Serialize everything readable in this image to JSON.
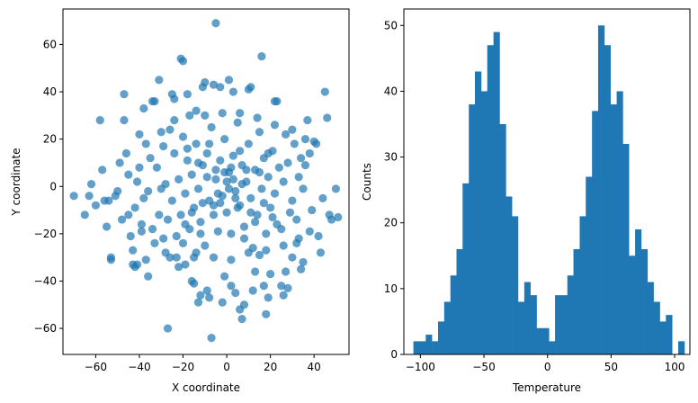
{
  "chart_data": [
    {
      "type": "scatter",
      "xlabel": "X coordinate",
      "ylabel": "Y coordinate",
      "xlim": [
        -75,
        56
      ],
      "ylim": [
        -71,
        75
      ],
      "xticks": [
        -60,
        -40,
        -20,
        0,
        20,
        40
      ],
      "yticks": [
        -60,
        -40,
        -20,
        0,
        20,
        40,
        60
      ],
      "color": "#1f77b4",
      "alpha": 0.7,
      "points": [
        [
          -70,
          -4
        ],
        [
          -65,
          -12
        ],
        [
          -63,
          -4
        ],
        [
          -58,
          28
        ],
        [
          -57,
          7
        ],
        [
          -56,
          -6
        ],
        [
          -55,
          -17
        ],
        [
          -54,
          -6
        ],
        [
          -53,
          -31
        ],
        [
          -53,
          -30
        ],
        [
          -51,
          -4
        ],
        [
          -49,
          10
        ],
        [
          -47,
          28
        ],
        [
          -47,
          39
        ],
        [
          -45,
          -12
        ],
        [
          -43,
          -33
        ],
        [
          -42,
          -34
        ],
        [
          -41,
          -33
        ],
        [
          -40,
          8
        ],
        [
          -39,
          -19
        ],
        [
          -38,
          33
        ],
        [
          -37,
          -31
        ],
        [
          -36,
          -38
        ],
        [
          -34,
          36
        ],
        [
          -33,
          36
        ],
        [
          -31,
          45
        ],
        [
          -30,
          23
        ],
        [
          -29,
          -22
        ],
        [
          -28,
          -28
        ],
        [
          -27,
          -60
        ],
        [
          -25,
          39
        ],
        [
          -24,
          37
        ],
        [
          -23,
          -30
        ],
        [
          -22,
          -34
        ],
        [
          -21,
          54
        ],
        [
          -20,
          53
        ],
        [
          -19,
          -33
        ],
        [
          -18,
          39
        ],
        [
          -16,
          -40
        ],
        [
          -15,
          -41
        ],
        [
          -14,
          32
        ],
        [
          -13,
          -49
        ],
        [
          -12,
          -46
        ],
        [
          -11,
          42
        ],
        [
          -10,
          44
        ],
        [
          -9,
          -44
        ],
        [
          -8,
          -47
        ],
        [
          -7,
          -64
        ],
        [
          -6,
          43
        ],
        [
          -5,
          69
        ],
        [
          -3,
          42
        ],
        [
          -2,
          -49
        ],
        [
          -1,
          -38
        ],
        [
          1,
          45
        ],
        [
          2,
          -42
        ],
        [
          3,
          40
        ],
        [
          4,
          -45
        ],
        [
          6,
          -52
        ],
        [
          7,
          -56
        ],
        [
          8,
          -50
        ],
        [
          10,
          41
        ],
        [
          11,
          42
        ],
        [
          12,
          -44
        ],
        [
          13,
          -36
        ],
        [
          15,
          -29
        ],
        [
          16,
          55
        ],
        [
          17,
          -42
        ],
        [
          18,
          -54
        ],
        [
          19,
          -47
        ],
        [
          20,
          -37
        ],
        [
          22,
          36
        ],
        [
          23,
          36
        ],
        [
          25,
          -42
        ],
        [
          26,
          -46
        ],
        [
          27,
          -36
        ],
        [
          28,
          -43
        ],
        [
          30,
          -30
        ],
        [
          32,
          -24
        ],
        [
          34,
          -35
        ],
        [
          35,
          -32
        ],
        [
          37,
          28
        ],
        [
          38,
          14
        ],
        [
          40,
          19
        ],
        [
          41,
          18
        ],
        [
          42,
          -21
        ],
        [
          43,
          -28
        ],
        [
          45,
          40
        ],
        [
          46,
          29
        ],
        [
          47,
          -12
        ],
        [
          48,
          -14
        ],
        [
          50,
          -1
        ],
        [
          51,
          -13
        ],
        [
          44,
          -5
        ],
        [
          38,
          -19
        ],
        [
          36,
          9
        ],
        [
          33,
          4
        ],
        [
          31,
          18
        ],
        [
          29,
          -11
        ],
        [
          27,
          22
        ],
        [
          25,
          -18
        ],
        [
          -62,
          1
        ],
        [
          -60,
          -8
        ],
        [
          -46,
          14
        ],
        [
          -44,
          -21
        ],
        [
          -42,
          -9
        ],
        [
          -41,
          2
        ],
        [
          -39,
          -16
        ],
        [
          -37,
          18
        ],
        [
          -36,
          -2
        ],
        [
          -35,
          12
        ],
        [
          -33,
          -24
        ],
        [
          -32,
          8
        ],
        [
          -31,
          -12
        ],
        [
          -29,
          17
        ],
        [
          -28,
          1
        ],
        [
          -27,
          -14
        ],
        [
          -26,
          24
        ],
        [
          -25,
          -6
        ],
        [
          -24,
          14
        ],
        [
          -23,
          -21
        ],
        [
          -22,
          3
        ],
        [
          -21,
          -12
        ],
        [
          -20,
          21
        ],
        [
          -19,
          -3
        ],
        [
          -18,
          11
        ],
        [
          -17,
          -18
        ],
        [
          -16,
          5
        ],
        [
          -15,
          -9
        ],
        [
          -14,
          18
        ],
        [
          -13,
          -1
        ],
        [
          -12,
          -15
        ],
        [
          -11,
          9
        ],
        [
          -10,
          -25
        ],
        [
          -9,
          14
        ],
        [
          -8,
          -6
        ],
        [
          -7,
          25
        ],
        [
          -6,
          -12
        ],
        [
          -5,
          3
        ],
        [
          -4,
          -19
        ],
        [
          -3,
          11
        ],
        [
          -2,
          -4
        ],
        [
          -1,
          20
        ],
        [
          0,
          -11
        ],
        [
          1,
          6
        ],
        [
          2,
          -20
        ],
        [
          3,
          13
        ],
        [
          4,
          -2
        ],
        [
          5,
          27
        ],
        [
          6,
          -8
        ],
        [
          7,
          9
        ],
        [
          8,
          -17
        ],
        [
          9,
          2
        ],
        [
          10,
          18
        ],
        [
          11,
          -5
        ],
        [
          12,
          -26
        ],
        [
          13,
          7
        ],
        [
          14,
          -12
        ],
        [
          15,
          23
        ],
        [
          16,
          -1
        ],
        [
          17,
          12
        ],
        [
          18,
          -20
        ],
        [
          19,
          4
        ],
        [
          20,
          -9
        ],
        [
          21,
          15
        ],
        [
          22,
          -3
        ],
        [
          23,
          -16
        ],
        [
          24,
          8
        ],
        [
          26,
          2
        ],
        [
          28,
          10
        ],
        [
          30,
          -6
        ],
        [
          32,
          -14
        ],
        [
          34,
          12
        ],
        [
          35,
          -1
        ],
        [
          -50,
          -2
        ],
        [
          -48,
          -14
        ],
        [
          -45,
          5
        ],
        [
          -43,
          -27
        ],
        [
          -40,
          22
        ],
        [
          -38,
          -5
        ],
        [
          -34,
          -18
        ],
        [
          -30,
          -1
        ],
        [
          -26,
          -30
        ],
        [
          -24,
          28
        ],
        [
          -20,
          -24
        ],
        [
          -17,
          30
        ],
        [
          -14,
          -28
        ],
        [
          -10,
          30
        ],
        [
          -6,
          -30
        ],
        [
          -2,
          31
        ],
        [
          2,
          -31
        ],
        [
          6,
          31
        ],
        [
          10,
          -28
        ],
        [
          14,
          29
        ],
        [
          18,
          -27
        ],
        [
          22,
          26
        ],
        [
          26,
          -25
        ],
        [
          30,
          24
        ],
        [
          33,
          -22
        ],
        [
          36,
          20
        ],
        [
          39,
          -10
        ],
        [
          -5,
          7
        ],
        [
          -3,
          -7
        ],
        [
          0,
          2
        ],
        [
          2,
          8
        ],
        [
          4,
          -5
        ],
        [
          6,
          15
        ],
        [
          -8,
          18
        ],
        [
          -12,
          -20
        ],
        [
          8,
          -22
        ],
        [
          -15,
          -30
        ],
        [
          1,
          -1
        ],
        [
          3,
          3
        ],
        [
          5,
          -9
        ],
        [
          -1,
          6
        ],
        [
          -4,
          -3
        ],
        [
          7,
          1
        ],
        [
          -6,
          -8
        ],
        [
          9,
          7
        ],
        [
          -9,
          4
        ],
        [
          11,
          -11
        ],
        [
          -11,
          -7
        ],
        [
          13,
          -15
        ],
        [
          -13,
          10
        ],
        [
          15,
          6
        ],
        [
          -16,
          -11
        ],
        [
          17,
          -7
        ],
        [
          -18,
          16
        ],
        [
          19,
          14
        ],
        [
          -19,
          -16
        ],
        [
          21,
          -13
        ]
      ]
    },
    {
      "type": "bar",
      "subtype": "histogram",
      "xlabel": "Temperature",
      "ylabel": "Counts",
      "xlim": [
        -113,
        112
      ],
      "ylim": [
        0,
        52.5
      ],
      "xticks": [
        -100,
        -50,
        0,
        50,
        100
      ],
      "yticks": [
        0,
        10,
        20,
        30,
        40,
        50
      ],
      "color": "#1f77b4",
      "bin_edges": [
        -105.5,
        -100.7,
        -95.8,
        -91,
        -86.1,
        -81.3,
        -76.4,
        -71.6,
        -66.8,
        -61.9,
        -57.1,
        -52.2,
        -47.4,
        -42.5,
        -37.7,
        -32.8,
        -28,
        -23.2,
        -18.3,
        -13.5,
        -8.6,
        -3.8,
        1.1,
        5.9,
        10.8,
        15.6,
        20.4,
        25.3,
        30.1,
        35,
        39.8,
        44.7,
        49.5,
        54.4,
        59.2,
        64,
        68.9,
        73.7,
        78.6,
        83.4,
        88.3,
        93.1,
        98,
        102.8,
        107.7
      ],
      "counts": [
        2,
        2,
        3,
        2,
        5,
        8,
        12,
        16,
        26,
        38,
        43,
        40,
        47,
        49,
        35,
        24,
        21,
        8,
        11,
        9,
        4,
        4,
        2,
        9,
        9,
        12,
        16,
        21,
        27,
        37,
        50,
        47,
        38,
        40,
        32,
        15,
        19,
        16,
        11,
        8,
        5,
        6,
        0,
        2
      ]
    }
  ]
}
